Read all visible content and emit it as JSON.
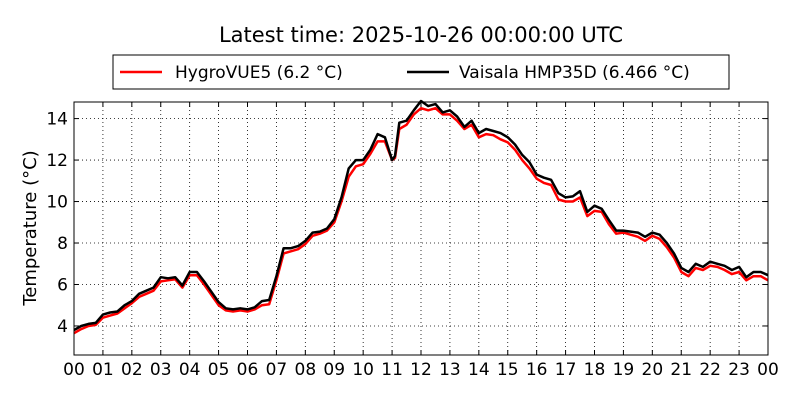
{
  "chart_data": {
    "type": "line",
    "title": "Latest time: 2025-10-26 00:00:00 UTC",
    "xlabel": "",
    "ylabel": "Temperature (°C)",
    "xlim": [
      0,
      24
    ],
    "ylim": [
      2.6,
      14.8
    ],
    "grid": true,
    "legend_position": "top",
    "x_ticks": [
      0,
      1,
      2,
      3,
      4,
      5,
      6,
      7,
      8,
      9,
      10,
      11,
      12,
      13,
      14,
      15,
      16,
      17,
      18,
      19,
      20,
      21,
      22,
      23,
      24
    ],
    "x_tick_labels": [
      "00",
      "01",
      "02",
      "03",
      "04",
      "05",
      "06",
      "07",
      "08",
      "09",
      "10",
      "11",
      "12",
      "13",
      "14",
      "15",
      "16",
      "17",
      "18",
      "19",
      "20",
      "21",
      "22",
      "23",
      "00"
    ],
    "y_ticks": [
      4,
      6,
      8,
      10,
      12,
      14
    ],
    "y_tick_labels": [
      "4",
      "6",
      "8",
      "10",
      "12",
      "14"
    ],
    "series": [
      {
        "name": "HygroVUE5 (6.2 °C)",
        "color": "#ff0000",
        "points": [
          [
            0,
            3.65
          ],
          [
            0.25,
            3.85
          ],
          [
            0.5,
            4.0
          ],
          [
            0.75,
            4.05
          ],
          [
            1,
            4.4
          ],
          [
            1.25,
            4.5
          ],
          [
            1.5,
            4.6
          ],
          [
            1.75,
            4.85
          ],
          [
            2,
            5.1
          ],
          [
            2.25,
            5.4
          ],
          [
            2.5,
            5.55
          ],
          [
            2.75,
            5.7
          ],
          [
            3,
            6.15
          ],
          [
            3.25,
            6.2
          ],
          [
            3.5,
            6.25
          ],
          [
            3.75,
            5.85
          ],
          [
            4,
            6.45
          ],
          [
            4.25,
            6.45
          ],
          [
            4.5,
            6.0
          ],
          [
            4.75,
            5.5
          ],
          [
            5,
            5.0
          ],
          [
            5.25,
            4.75
          ],
          [
            5.5,
            4.7
          ],
          [
            5.75,
            4.75
          ],
          [
            6,
            4.7
          ],
          [
            6.25,
            4.8
          ],
          [
            6.5,
            5.0
          ],
          [
            6.75,
            5.05
          ],
          [
            7,
            6.2
          ],
          [
            7.25,
            7.5
          ],
          [
            7.5,
            7.6
          ],
          [
            7.75,
            7.7
          ],
          [
            8,
            7.95
          ],
          [
            8.25,
            8.35
          ],
          [
            8.5,
            8.45
          ],
          [
            8.75,
            8.6
          ],
          [
            9,
            9.0
          ],
          [
            9.25,
            10.0
          ],
          [
            9.5,
            11.2
          ],
          [
            9.75,
            11.7
          ],
          [
            10,
            11.8
          ],
          [
            10.25,
            12.3
          ],
          [
            10.5,
            12.9
          ],
          [
            10.75,
            12.9
          ],
          [
            11,
            12.0
          ],
          [
            11.1,
            12.1
          ],
          [
            11.25,
            13.5
          ],
          [
            11.5,
            13.7
          ],
          [
            11.75,
            14.2
          ],
          [
            12,
            14.5
          ],
          [
            12.25,
            14.4
          ],
          [
            12.5,
            14.5
          ],
          [
            12.75,
            14.2
          ],
          [
            13,
            14.2
          ],
          [
            13.25,
            13.9
          ],
          [
            13.5,
            13.5
          ],
          [
            13.75,
            13.7
          ],
          [
            14,
            13.1
          ],
          [
            14.25,
            13.25
          ],
          [
            14.5,
            13.2
          ],
          [
            14.75,
            13.0
          ],
          [
            15,
            12.85
          ],
          [
            15.25,
            12.5
          ],
          [
            15.5,
            12.0
          ],
          [
            15.75,
            11.6
          ],
          [
            16,
            11.1
          ],
          [
            16.25,
            10.9
          ],
          [
            16.5,
            10.8
          ],
          [
            16.75,
            10.1
          ],
          [
            17,
            10.0
          ],
          [
            17.25,
            10.0
          ],
          [
            17.5,
            10.2
          ],
          [
            17.75,
            9.3
          ],
          [
            18,
            9.55
          ],
          [
            18.25,
            9.5
          ],
          [
            18.5,
            8.9
          ],
          [
            18.75,
            8.45
          ],
          [
            19,
            8.5
          ],
          [
            19.25,
            8.4
          ],
          [
            19.5,
            8.3
          ],
          [
            19.75,
            8.1
          ],
          [
            20,
            8.35
          ],
          [
            20.25,
            8.2
          ],
          [
            20.5,
            7.8
          ],
          [
            20.75,
            7.3
          ],
          [
            21,
            6.6
          ],
          [
            21.25,
            6.4
          ],
          [
            21.5,
            6.8
          ],
          [
            21.75,
            6.7
          ],
          [
            22,
            6.9
          ],
          [
            22.25,
            6.85
          ],
          [
            22.5,
            6.7
          ],
          [
            22.75,
            6.5
          ],
          [
            23,
            6.6
          ],
          [
            23.25,
            6.2
          ],
          [
            23.5,
            6.4
          ],
          [
            23.75,
            6.4
          ],
          [
            24,
            6.2
          ]
        ]
      },
      {
        "name": "Vaisala HMP35D (6.466 °C)",
        "color": "#000000",
        "points": [
          [
            0,
            3.8
          ],
          [
            0.25,
            4.0
          ],
          [
            0.5,
            4.1
          ],
          [
            0.75,
            4.15
          ],
          [
            1,
            4.55
          ],
          [
            1.25,
            4.65
          ],
          [
            1.5,
            4.7
          ],
          [
            1.75,
            5.0
          ],
          [
            2,
            5.2
          ],
          [
            2.25,
            5.55
          ],
          [
            2.5,
            5.7
          ],
          [
            2.75,
            5.85
          ],
          [
            3,
            6.35
          ],
          [
            3.25,
            6.3
          ],
          [
            3.5,
            6.35
          ],
          [
            3.75,
            5.95
          ],
          [
            4,
            6.6
          ],
          [
            4.25,
            6.6
          ],
          [
            4.5,
            6.15
          ],
          [
            4.75,
            5.65
          ],
          [
            5,
            5.15
          ],
          [
            5.25,
            4.85
          ],
          [
            5.5,
            4.8
          ],
          [
            5.75,
            4.85
          ],
          [
            6,
            4.8
          ],
          [
            6.25,
            4.9
          ],
          [
            6.5,
            5.2
          ],
          [
            6.75,
            5.25
          ],
          [
            7,
            6.4
          ],
          [
            7.25,
            7.75
          ],
          [
            7.5,
            7.75
          ],
          [
            7.75,
            7.85
          ],
          [
            8,
            8.1
          ],
          [
            8.25,
            8.5
          ],
          [
            8.5,
            8.55
          ],
          [
            8.75,
            8.7
          ],
          [
            9,
            9.15
          ],
          [
            9.25,
            10.2
          ],
          [
            9.5,
            11.6
          ],
          [
            9.75,
            12.0
          ],
          [
            10,
            12.0
          ],
          [
            10.25,
            12.5
          ],
          [
            10.5,
            13.25
          ],
          [
            10.75,
            13.1
          ],
          [
            11,
            12.0
          ],
          [
            11.1,
            12.2
          ],
          [
            11.25,
            13.8
          ],
          [
            11.5,
            13.9
          ],
          [
            11.75,
            14.4
          ],
          [
            12,
            14.85
          ],
          [
            12.25,
            14.6
          ],
          [
            12.5,
            14.7
          ],
          [
            12.75,
            14.3
          ],
          [
            13,
            14.4
          ],
          [
            13.25,
            14.1
          ],
          [
            13.5,
            13.6
          ],
          [
            13.75,
            13.9
          ],
          [
            14,
            13.3
          ],
          [
            14.25,
            13.5
          ],
          [
            14.5,
            13.4
          ],
          [
            14.75,
            13.3
          ],
          [
            15,
            13.1
          ],
          [
            15.25,
            12.75
          ],
          [
            15.5,
            12.25
          ],
          [
            15.75,
            11.9
          ],
          [
            16,
            11.3
          ],
          [
            16.25,
            11.15
          ],
          [
            16.5,
            11.05
          ],
          [
            16.75,
            10.4
          ],
          [
            17,
            10.2
          ],
          [
            17.25,
            10.25
          ],
          [
            17.5,
            10.5
          ],
          [
            17.75,
            9.5
          ],
          [
            18,
            9.8
          ],
          [
            18.25,
            9.65
          ],
          [
            18.5,
            9.1
          ],
          [
            18.75,
            8.6
          ],
          [
            19,
            8.6
          ],
          [
            19.25,
            8.55
          ],
          [
            19.5,
            8.5
          ],
          [
            19.75,
            8.3
          ],
          [
            20,
            8.5
          ],
          [
            20.25,
            8.4
          ],
          [
            20.5,
            8.0
          ],
          [
            20.75,
            7.5
          ],
          [
            21,
            6.8
          ],
          [
            21.25,
            6.6
          ],
          [
            21.5,
            7.0
          ],
          [
            21.75,
            6.85
          ],
          [
            22,
            7.1
          ],
          [
            22.25,
            7.0
          ],
          [
            22.5,
            6.9
          ],
          [
            22.75,
            6.7
          ],
          [
            23,
            6.85
          ],
          [
            23.25,
            6.35
          ],
          [
            23.5,
            6.6
          ],
          [
            23.75,
            6.6
          ],
          [
            24,
            6.45
          ]
        ]
      }
    ]
  }
}
